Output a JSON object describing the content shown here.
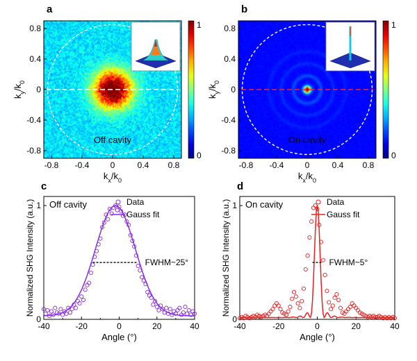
{
  "colors": {
    "jet_low": "#00007f",
    "jet_high": "#7f0000",
    "off_cavity_series": "#8a2be2",
    "on_cavity_series": "#e8201f",
    "circle": "#ffffff"
  },
  "chart_data": [
    {
      "panel": "a",
      "type": "heatmap",
      "xlabel": "kx/k0",
      "ylabel": "ky/k0",
      "xlim": [
        -0.9,
        0.9
      ],
      "ylim": [
        -0.9,
        0.9
      ],
      "xticks": [
        "-0.8",
        "-0.4",
        "0",
        "0.4",
        "0.8"
      ],
      "yticks": [
        "0.8",
        "0.4",
        "0",
        "-0.4",
        "-0.8"
      ],
      "colorbar": {
        "min": 0,
        "max": 1,
        "labels": [
          "1",
          "0"
        ],
        "colormap": "jet"
      },
      "annotation": "Off cavity",
      "circle_radius_k": 0.85,
      "dashed_line_y": 0,
      "spot": {
        "center": [
          0,
          0
        ],
        "sigma_k": 0.17,
        "peak": 0.85
      },
      "inset": "3D surface of intensity"
    },
    {
      "panel": "b",
      "type": "heatmap",
      "xlabel": "kx/k0",
      "ylabel": "ky/k0",
      "xlim": [
        -0.9,
        0.9
      ],
      "ylim": [
        -0.9,
        0.9
      ],
      "xticks": [
        "-0.8",
        "-0.4",
        "0",
        "0.4",
        "0.8"
      ],
      "yticks": [
        "0.8",
        "0.4",
        "0",
        "-0.4",
        "-0.8"
      ],
      "colorbar": {
        "min": 0,
        "max": 1,
        "labels": [
          "1",
          "0"
        ],
        "colormap": "jet"
      },
      "annotation": "On cavity",
      "circle_radius_k": 0.85,
      "dashed_line_y": 0,
      "spot": {
        "center": [
          0,
          0
        ],
        "sigma_k": 0.03,
        "peak": 1.0
      },
      "rings_k": [
        0.18,
        0.34,
        0.5
      ],
      "inset": "3D surface of intensity"
    },
    {
      "panel": "c",
      "type": "scatter",
      "title": "Off cavity",
      "xlabel": "Angle (°)",
      "ylabel": "Normalized SHG Intensity (a.u.)",
      "xlim": [
        -40,
        40
      ],
      "ylim": [
        0,
        1.08
      ],
      "xticks": [
        -40,
        -20,
        0,
        20,
        40
      ],
      "yticks": [
        0,
        1
      ],
      "legend": [
        "Data",
        "Gauss fit"
      ],
      "annotation": "FWHM~25°",
      "fwhm_deg": 25,
      "fit": {
        "center": -2,
        "sigma": 10.6,
        "amp": 0.97,
        "offset": 0.03
      },
      "series": [
        {
          "name": "Data",
          "marker": "open-circle",
          "x": [
            -40,
            -39,
            -38,
            -37,
            -36,
            -35,
            -34,
            -33,
            -32,
            -31,
            -30,
            -29,
            -28,
            -27,
            -26,
            -25,
            -24,
            -23,
            -22,
            -21,
            -20,
            -19,
            -18,
            -17,
            -16,
            -15,
            -14,
            -13,
            -12,
            -11,
            -10,
            -9,
            -8,
            -7,
            -6,
            -5,
            -4,
            -3,
            -2,
            -1,
            0,
            1,
            2,
            3,
            4,
            5,
            6,
            7,
            8,
            9,
            10,
            11,
            12,
            13,
            14,
            15,
            16,
            17,
            18,
            19,
            20,
            21,
            22,
            23,
            24,
            25,
            26,
            27,
            28,
            29,
            30,
            31,
            32,
            33,
            34,
            35,
            36,
            37,
            38,
            39,
            40
          ],
          "y": [
            0.09,
            0.05,
            0.08,
            0.03,
            0.07,
            0.04,
            0.1,
            0.06,
            0.05,
            0.09,
            0.04,
            0.07,
            0.05,
            0.1,
            0.06,
            0.09,
            0.13,
            0.1,
            0.16,
            0.14,
            0.2,
            0.17,
            0.26,
            0.3,
            0.32,
            0.41,
            0.48,
            0.55,
            0.6,
            0.66,
            0.71,
            0.81,
            0.85,
            0.92,
            0.88,
            0.97,
            0.93,
            0.98,
            1.0,
            0.96,
            0.99,
            0.95,
            0.91,
            0.92,
            0.86,
            0.83,
            0.74,
            0.69,
            0.64,
            0.56,
            0.47,
            0.43,
            0.37,
            0.34,
            0.31,
            0.24,
            0.21,
            0.19,
            0.13,
            0.16,
            0.11,
            0.08,
            0.12,
            0.09,
            0.06,
            0.1,
            0.05,
            0.09,
            0.04,
            0.07,
            0.05,
            0.08,
            0.1,
            0.04,
            0.06,
            0.11,
            0.05,
            0.08,
            0.04,
            0.07,
            0.05
          ]
        },
        {
          "name": "Gauss fit",
          "line": "solid"
        }
      ]
    },
    {
      "panel": "d",
      "type": "scatter",
      "title": "On cavity",
      "xlabel": "Angle (°)",
      "ylabel": "Normalized SHG Intensity (a.u.)",
      "xlim": [
        -40,
        40
      ],
      "ylim": [
        0,
        1.08
      ],
      "xticks": [
        -40,
        -20,
        0,
        20,
        40
      ],
      "yticks": [
        0,
        1
      ],
      "legend": [
        "Data",
        "Gauss fit"
      ],
      "annotation": "FWHM~5°",
      "fwhm_deg": 5,
      "series": [
        {
          "name": "Data",
          "marker": "open-circle",
          "x": [
            -40,
            -39,
            -38,
            -37,
            -36,
            -35,
            -34,
            -33,
            -32,
            -31,
            -30,
            -29,
            -28,
            -27,
            -26,
            -25,
            -24,
            -23,
            -22,
            -21,
            -20,
            -19,
            -18,
            -17,
            -16,
            -15,
            -14,
            -13,
            -12,
            -11,
            -10,
            -9,
            -8,
            -7,
            -6,
            -5,
            -4,
            -3,
            -2,
            -1,
            0,
            1,
            2,
            3,
            4,
            5,
            6,
            7,
            8,
            9,
            10,
            11,
            12,
            13,
            14,
            15,
            16,
            17,
            18,
            19,
            20,
            21,
            22,
            23,
            24,
            25,
            26,
            27,
            28,
            29,
            30,
            31,
            32,
            33,
            34,
            35,
            36,
            37,
            38,
            39,
            40
          ],
          "y": [
            0.01,
            0.02,
            0.01,
            0.03,
            0.02,
            0.01,
            0.02,
            0.03,
            0.02,
            0.04,
            0.03,
            0.02,
            0.03,
            0.04,
            0.03,
            0.05,
            0.07,
            0.09,
            0.12,
            0.14,
            0.12,
            0.09,
            0.06,
            0.05,
            0.04,
            0.07,
            0.11,
            0.18,
            0.24,
            0.2,
            0.14,
            0.1,
            0.16,
            0.27,
            0.44,
            0.56,
            0.72,
            0.86,
            0.98,
            1.0,
            0.97,
            0.83,
            0.68,
            0.52,
            0.39,
            0.25,
            0.15,
            0.09,
            0.12,
            0.19,
            0.22,
            0.17,
            0.1,
            0.06,
            0.05,
            0.07,
            0.09,
            0.11,
            0.14,
            0.12,
            0.1,
            0.08,
            0.06,
            0.05,
            0.04,
            0.03,
            0.02,
            0.03,
            0.02,
            0.03,
            0.02,
            0.02,
            0.03,
            0.02,
            0.01,
            0.02,
            0.01,
            0.02,
            0.01,
            0.02,
            0.01
          ]
        },
        {
          "name": "Gauss fit",
          "line": "solid"
        }
      ]
    }
  ],
  "labels": {
    "panel_a": "a",
    "panel_b": "b",
    "panel_c": "c",
    "panel_d": "d",
    "kx_main": "k",
    "kx_sub": "x",
    "k0_main": "/k",
    "k0_sub": "0",
    "ky_sub": "y",
    "off_cavity": "Off cavity",
    "on_cavity": "On cavity",
    "angle_label": "Angle (°)",
    "shg_label": "Normalized SHG Intensity (a.u.)",
    "legend_data": "Data",
    "legend_fit": "Gauss fit",
    "fwhm_c": "FWHM~25°",
    "fwhm_d": "FWHM~5°",
    "cbar_top": "1",
    "cbar_bottom": "0"
  }
}
